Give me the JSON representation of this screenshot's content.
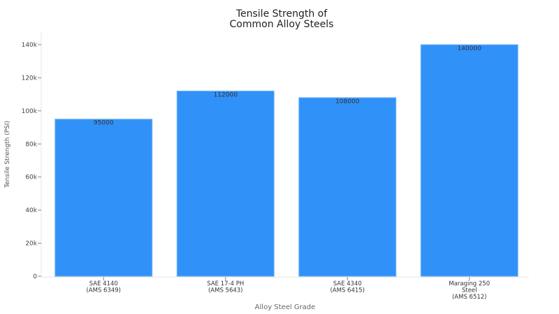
{
  "chart_data": {
    "type": "bar",
    "title": [
      "Tensile Strength of",
      "Common Alloy Steels"
    ],
    "xlabel": "Alloy Steel Grade",
    "ylabel": "Tensile Strength (PSI)",
    "categories": [
      [
        "SAE 4140",
        "(AMS 6349)"
      ],
      [
        "SAE 17-4 PH",
        "(AMS 5643)"
      ],
      [
        "SAE 4340",
        "(AMS 6415)"
      ],
      [
        "Maraging 250",
        "Steel",
        "(AMS 6512)"
      ]
    ],
    "values": [
      95000,
      112000,
      108000,
      140000
    ],
    "data_labels": [
      "95000",
      "112000",
      "108000",
      "140000"
    ],
    "yticks": [
      0,
      20000,
      40000,
      60000,
      80000,
      100000,
      120000,
      140000
    ],
    "ytick_labels": [
      "0",
      "20k",
      "40k",
      "60k",
      "80k",
      "100k",
      "120k",
      "140k"
    ],
    "ylim": [
      0,
      147000
    ],
    "grid": false,
    "bar_color": "#3092f8"
  }
}
